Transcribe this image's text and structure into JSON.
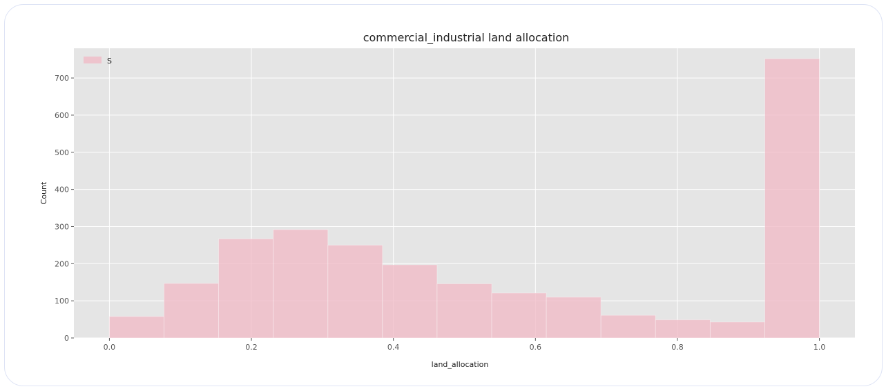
{
  "chart_data": {
    "type": "bar",
    "title": "commercial_industrial land allocation",
    "xlabel": "land_allocation",
    "ylabel": "Count",
    "xlim": [
      -0.05,
      1.05
    ],
    "ylim": [
      0,
      780
    ],
    "xticks": [
      0.0,
      0.2,
      0.4,
      0.6,
      0.8,
      1.0
    ],
    "xtick_labels": [
      "0.0",
      "0.2",
      "0.4",
      "0.6",
      "0.8",
      "1.0"
    ],
    "yticks": [
      0,
      100,
      200,
      300,
      400,
      500,
      600,
      700
    ],
    "ytick_labels": [
      "0",
      "100",
      "200",
      "300",
      "400",
      "500",
      "600",
      "700"
    ],
    "grid": true,
    "legend_position": "top-left",
    "series": [
      {
        "name": "S",
        "color": "#f0b8c4",
        "bins": [
          {
            "x0": 0.0,
            "x1": 0.0769,
            "count": 58
          },
          {
            "x0": 0.0769,
            "x1": 0.1538,
            "count": 147
          },
          {
            "x0": 0.1538,
            "x1": 0.2308,
            "count": 267
          },
          {
            "x0": 0.2308,
            "x1": 0.3077,
            "count": 292
          },
          {
            "x0": 0.3077,
            "x1": 0.3846,
            "count": 250
          },
          {
            "x0": 0.3846,
            "x1": 0.4615,
            "count": 197
          },
          {
            "x0": 0.4615,
            "x1": 0.5385,
            "count": 146
          },
          {
            "x0": 0.5385,
            "x1": 0.6154,
            "count": 121
          },
          {
            "x0": 0.6154,
            "x1": 0.6923,
            "count": 110
          },
          {
            "x0": 0.6923,
            "x1": 0.7692,
            "count": 61
          },
          {
            "x0": 0.7692,
            "x1": 0.8462,
            "count": 49
          },
          {
            "x0": 0.8462,
            "x1": 0.9231,
            "count": 43
          },
          {
            "x0": 0.9231,
            "x1": 1.0,
            "count": 752
          }
        ]
      }
    ]
  }
}
